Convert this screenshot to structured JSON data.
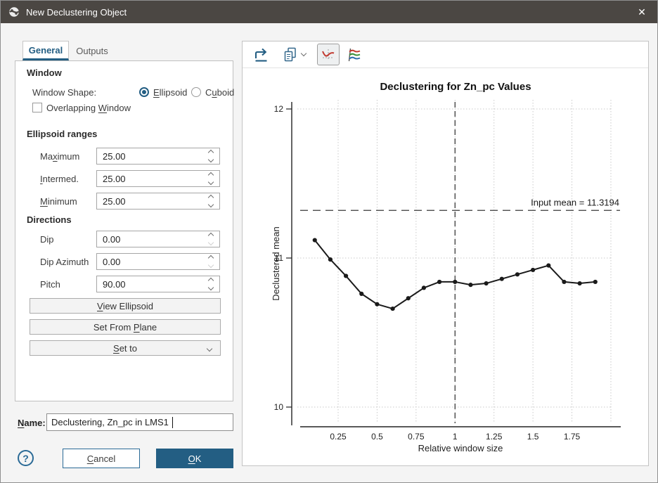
{
  "window": {
    "title": "New Declustering Object"
  },
  "tabs": [
    {
      "label": "General"
    },
    {
      "label": "Outputs"
    }
  ],
  "form": {
    "window_section": {
      "heading": "Window",
      "shape_label": "Window Shape:",
      "shapes": [
        {
          "pre": "",
          "key": "E",
          "post": "llipsoid",
          "selected": true
        },
        {
          "pre": "C",
          "key": "u",
          "post": "boid",
          "selected": false
        }
      ],
      "overlapping": {
        "pre": "Overlapping ",
        "key": "W",
        "post": "indow",
        "checked": false
      }
    },
    "ranges": {
      "heading": "Ellipsoid ranges",
      "rows": [
        {
          "label": {
            "pre": "Ma",
            "key": "x",
            "post": "imum"
          },
          "value": "25.00"
        },
        {
          "label": {
            "pre": "",
            "key": "I",
            "post": "ntermed."
          },
          "value": "25.00"
        },
        {
          "label": {
            "pre": "",
            "key": "M",
            "post": "inimum"
          },
          "value": "25.00"
        }
      ]
    },
    "directions": {
      "heading": "Directions",
      "rows": [
        {
          "label": "Dip",
          "value": "0.00",
          "down_disabled": true
        },
        {
          "label": "Dip Azimuth",
          "value": "0.00",
          "down_disabled": true
        },
        {
          "label": "Pitch",
          "value": "90.00",
          "down_disabled": false
        }
      ]
    },
    "buttons": {
      "view_ellipsoid": {
        "pre": "",
        "key": "V",
        "post": "iew Ellipsoid"
      },
      "set_from_plane": {
        "pre": "Set From ",
        "key": "P",
        "post": "lane"
      },
      "set_to": {
        "pre": "",
        "key": "S",
        "post": "et to"
      }
    }
  },
  "name_row": {
    "label": {
      "pre": "",
      "key": "N",
      "post": "ame:"
    },
    "value": "Declustering, Zn_pc in LMS1"
  },
  "footer": {
    "help": "?",
    "cancel": {
      "pre": "",
      "key": "C",
      "post": "ancel"
    },
    "ok": {
      "pre": "",
      "key": "O",
      "post": "K"
    }
  },
  "toolbar": {
    "icons": [
      "export-icon",
      "copy-icon",
      "decluster-curve-icon",
      "multi-line-chart-icon"
    ]
  },
  "colors": {
    "accent": "#235e83",
    "titlebar": "#4b4743",
    "chart_line": "#1a1a1a"
  },
  "chart_data": {
    "type": "line",
    "title": "Declustering for Zn_pc Values",
    "xlabel": "Relative window size",
    "ylabel": "Declustered mean",
    "x": [
      0.1,
      0.2,
      0.3,
      0.4,
      0.5,
      0.6,
      0.7,
      0.8,
      0.9,
      1.0,
      1.1,
      1.2,
      1.3,
      1.4,
      1.5,
      1.6,
      1.7,
      1.8,
      1.9
    ],
    "y": [
      11.12,
      10.99,
      10.88,
      10.76,
      10.69,
      10.66,
      10.73,
      10.8,
      10.84,
      10.84,
      10.82,
      10.83,
      10.86,
      10.89,
      10.92,
      10.95,
      10.84,
      10.83,
      10.84
    ],
    "input_mean": 11.3194,
    "input_mean_label": "Input mean = 11.3194",
    "reference_x": 1,
    "x_ticks": [
      0.25,
      0.5,
      0.75,
      1,
      1.25,
      1.5,
      1.75
    ],
    "x_tick_labels": [
      "0.25",
      "0.5",
      "0.75",
      "1",
      "1.25",
      "1.5",
      "1.75"
    ],
    "x_grid": [
      0.25,
      0.5,
      0.75,
      1,
      1.25,
      1.5,
      1.75,
      2.0
    ],
    "y_ticks": [
      10,
      11,
      12
    ],
    "ylim": [
      10,
      12
    ],
    "xlim": [
      0,
      2
    ],
    "grid": true,
    "marker": "circle",
    "line_color": "#1a1a1a"
  }
}
